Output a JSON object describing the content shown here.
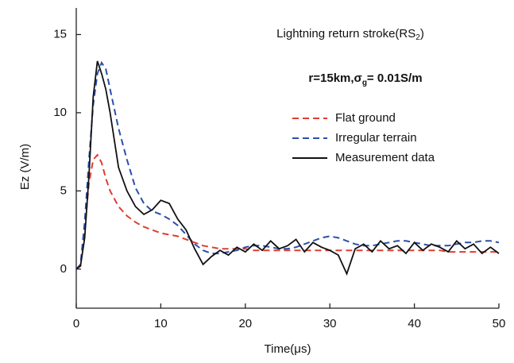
{
  "chart_data": {
    "type": "line",
    "annotations": [
      {
        "text": "Lightning return stroke(RS",
        "sub": "2",
        "tail": ")"
      },
      {
        "text": "r=15km,σ",
        "sub": "g",
        "tail": "= 0.01S/m"
      }
    ],
    "xlabel": "Time(μs)",
    "ylabel": "Ez (V/m)",
    "xlim": [
      0,
      50
    ],
    "ylim": [
      -2.5,
      16.7
    ],
    "xticks": [
      0,
      10,
      20,
      30,
      40,
      50
    ],
    "yticks": [
      0,
      5,
      10,
      15
    ],
    "legend": "upper right",
    "x": [
      0,
      0.5,
      1,
      1.5,
      2,
      2.5,
      3,
      3.5,
      4,
      5,
      6,
      7,
      8,
      9,
      10,
      11,
      12,
      13,
      14,
      15,
      16,
      17,
      18,
      19,
      20,
      21,
      22,
      23,
      24,
      25,
      26,
      27,
      28,
      29,
      30,
      31,
      32,
      33,
      34,
      35,
      36,
      37,
      38,
      39,
      40,
      41,
      42,
      43,
      44,
      45,
      46,
      47,
      48,
      49,
      50
    ],
    "series": [
      {
        "name": "Flat ground",
        "color": "#e03c31",
        "dash": true,
        "values": [
          0,
          0.2,
          2.5,
          5.5,
          7,
          7.3,
          6.8,
          5.8,
          5,
          4,
          3.4,
          3,
          2.7,
          2.5,
          2.3,
          2.2,
          2.1,
          1.9,
          1.7,
          1.5,
          1.4,
          1.3,
          1.3,
          1.3,
          1.3,
          1.2,
          1.2,
          1.2,
          1.2,
          1.2,
          1.2,
          1.2,
          1.2,
          1.2,
          1.2,
          1.2,
          1.2,
          1.2,
          1.2,
          1.2,
          1.2,
          1.2,
          1.2,
          1.2,
          1.2,
          1.2,
          1.2,
          1.2,
          1.1,
          1.1,
          1.1,
          1.1,
          1.1,
          1.1,
          1.1
        ]
      },
      {
        "name": "Irregular terrain",
        "color": "#2c4fa8",
        "dash": true,
        "values": [
          0,
          0.3,
          3,
          7,
          10.5,
          12.5,
          13.2,
          12.8,
          11.5,
          9,
          7,
          5.2,
          4.2,
          3.7,
          3.5,
          3.2,
          2.8,
          2.2,
          1.6,
          1.2,
          1,
          1,
          1.1,
          1.2,
          1.4,
          1.5,
          1.5,
          1.4,
          1.3,
          1.3,
          1.4,
          1.6,
          1.8,
          2,
          2.1,
          2,
          1.8,
          1.6,
          1.5,
          1.5,
          1.6,
          1.7,
          1.8,
          1.8,
          1.7,
          1.6,
          1.5,
          1.5,
          1.5,
          1.6,
          1.7,
          1.7,
          1.8,
          1.8,
          1.7
        ]
      },
      {
        "name": "Measurement data",
        "color": "#111111",
        "dash": false,
        "values": [
          0,
          0.2,
          2,
          6,
          11,
          13.3,
          12.5,
          11.5,
          10,
          6.5,
          5,
          4,
          3.5,
          3.8,
          4.4,
          4.2,
          3.2,
          2.5,
          1.3,
          0.3,
          0.8,
          1.2,
          0.9,
          1.4,
          1.1,
          1.6,
          1.2,
          1.8,
          1.3,
          1.5,
          1.9,
          1.1,
          1.7,
          1.4,
          1.2,
          0.9,
          -0.3,
          1.3,
          1.6,
          1.1,
          1.8,
          1.3,
          1.5,
          1.0,
          1.7,
          1.2,
          1.6,
          1.4,
          1.1,
          1.8,
          1.3,
          1.6,
          1.0,
          1.4,
          1.0
        ]
      }
    ]
  }
}
